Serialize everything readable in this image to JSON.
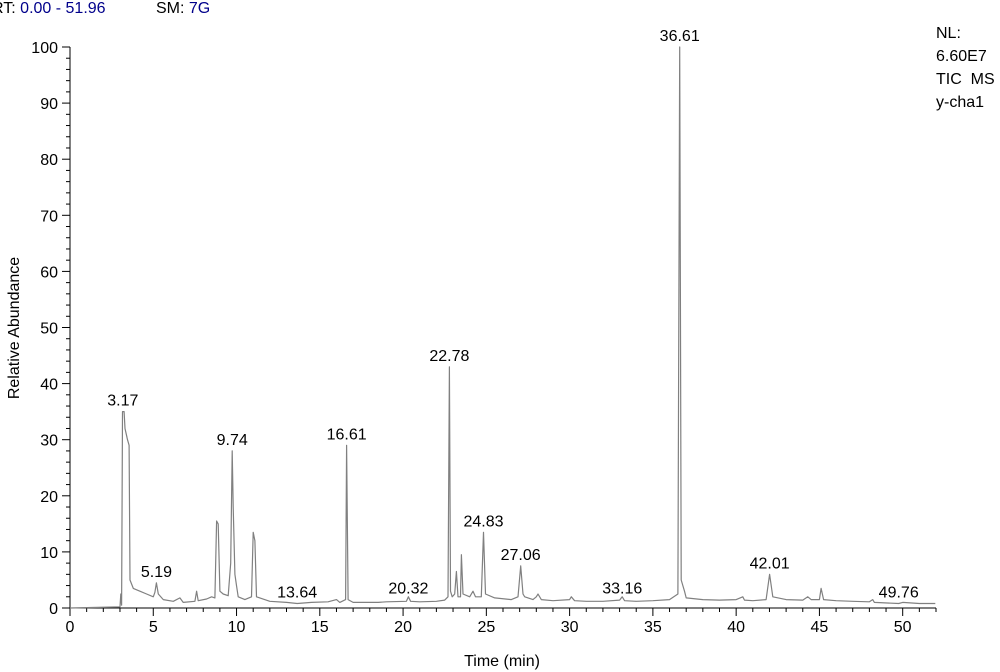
{
  "header": {
    "rt_label": "RT:",
    "rt_value": "0.00 - 51.96",
    "sm_label": "SM:",
    "sm_value": "7G"
  },
  "info": {
    "nl_label": "NL:",
    "nl_value": "6.60E7",
    "scan": "TIC  MS",
    "sample": "y-cha1"
  },
  "colors": {
    "trace": "#808080",
    "header_value": "#00008b"
  },
  "chart_data": {
    "type": "line",
    "xlabel": "Time (min)",
    "ylabel": "Relative Abundance",
    "xlim": [
      0,
      52
    ],
    "ylim": [
      0,
      100
    ],
    "x_ticks": [
      0,
      5,
      10,
      15,
      20,
      25,
      30,
      35,
      40,
      45,
      50
    ],
    "y_ticks": [
      0,
      10,
      20,
      30,
      40,
      50,
      60,
      70,
      80,
      90,
      100
    ],
    "grid": false,
    "peaks": [
      {
        "x": 3.17,
        "y": 35,
        "label": "3.17"
      },
      {
        "x": 5.19,
        "y": 4.5,
        "label": "5.19"
      },
      {
        "x": 9.74,
        "y": 28,
        "label": "9.74"
      },
      {
        "x": 13.64,
        "y": 0.8,
        "label": "13.64"
      },
      {
        "x": 16.61,
        "y": 29,
        "label": "16.61"
      },
      {
        "x": 20.32,
        "y": 1.5,
        "label": "20.32"
      },
      {
        "x": 22.78,
        "y": 43,
        "label": "22.78"
      },
      {
        "x": 24.83,
        "y": 13.5,
        "label": "24.83"
      },
      {
        "x": 27.06,
        "y": 7.5,
        "label": "27.06"
      },
      {
        "x": 33.16,
        "y": 1.5,
        "label": "33.16"
      },
      {
        "x": 36.61,
        "y": 100,
        "label": "36.61"
      },
      {
        "x": 42.01,
        "y": 6,
        "label": "42.01"
      },
      {
        "x": 49.76,
        "y": 0.8,
        "label": "49.76"
      }
    ],
    "trace": [
      [
        0,
        0
      ],
      [
        3.0,
        0.2
      ],
      [
        3.05,
        2.5
      ],
      [
        3.1,
        0.5
      ],
      [
        3.15,
        35
      ],
      [
        3.25,
        35
      ],
      [
        3.3,
        32
      ],
      [
        3.45,
        30
      ],
      [
        3.55,
        29
      ],
      [
        3.6,
        5
      ],
      [
        3.8,
        3.5
      ],
      [
        4.2,
        3
      ],
      [
        4.6,
        2.5
      ],
      [
        5.0,
        2
      ],
      [
        5.1,
        2.8
      ],
      [
        5.19,
        4.5
      ],
      [
        5.3,
        2.5
      ],
      [
        5.6,
        1.5
      ],
      [
        6.2,
        1.2
      ],
      [
        6.6,
        1.8
      ],
      [
        6.8,
        1
      ],
      [
        7.5,
        1.2
      ],
      [
        7.6,
        3
      ],
      [
        7.7,
        1.3
      ],
      [
        8.2,
        1.6
      ],
      [
        8.5,
        2
      ],
      [
        8.7,
        1.8
      ],
      [
        8.8,
        15.5
      ],
      [
        8.9,
        15
      ],
      [
        9.0,
        3
      ],
      [
        9.2,
        2.5
      ],
      [
        9.5,
        2.2
      ],
      [
        9.65,
        8
      ],
      [
        9.74,
        28
      ],
      [
        9.8,
        18
      ],
      [
        9.9,
        6
      ],
      [
        10.0,
        4
      ],
      [
        10.1,
        2
      ],
      [
        10.5,
        1.5
      ],
      [
        10.9,
        2
      ],
      [
        11.0,
        13.5
      ],
      [
        11.1,
        12
      ],
      [
        11.2,
        2
      ],
      [
        12.0,
        1.2
      ],
      [
        13.0,
        1
      ],
      [
        13.64,
        0.8
      ],
      [
        14.5,
        1
      ],
      [
        15.5,
        1.1
      ],
      [
        16.0,
        1.5
      ],
      [
        16.2,
        1
      ],
      [
        16.55,
        1.5
      ],
      [
        16.61,
        29
      ],
      [
        16.7,
        1.5
      ],
      [
        17.0,
        1
      ],
      [
        18.5,
        1
      ],
      [
        19.0,
        1.1
      ],
      [
        20.2,
        1.2
      ],
      [
        20.32,
        2
      ],
      [
        20.45,
        1.2
      ],
      [
        21.0,
        1.1
      ],
      [
        22.0,
        1.2
      ],
      [
        22.5,
        1.4
      ],
      [
        22.7,
        2
      ],
      [
        22.78,
        43
      ],
      [
        22.85,
        3
      ],
      [
        22.95,
        2
      ],
      [
        23.1,
        2.5
      ],
      [
        23.2,
        6.5
      ],
      [
        23.3,
        2
      ],
      [
        23.45,
        2
      ],
      [
        23.5,
        9.5
      ],
      [
        23.6,
        2.5
      ],
      [
        24.0,
        2
      ],
      [
        24.2,
        3
      ],
      [
        24.35,
        2
      ],
      [
        24.7,
        2
      ],
      [
        24.83,
        13.5
      ],
      [
        24.95,
        2.5
      ],
      [
        25.5,
        1.8
      ],
      [
        26.5,
        1.5
      ],
      [
        26.9,
        2
      ],
      [
        27.06,
        7.5
      ],
      [
        27.2,
        2.5
      ],
      [
        27.3,
        2
      ],
      [
        27.8,
        1.5
      ],
      [
        28.0,
        2
      ],
      [
        28.1,
        2.5
      ],
      [
        28.3,
        1.5
      ],
      [
        29.0,
        1.3
      ],
      [
        30.0,
        1.5
      ],
      [
        30.1,
        2
      ],
      [
        30.3,
        1.3
      ],
      [
        31.0,
        1.2
      ],
      [
        32.0,
        1.2
      ],
      [
        33.0,
        1.4
      ],
      [
        33.16,
        2
      ],
      [
        33.3,
        1.3
      ],
      [
        34.0,
        1.2
      ],
      [
        35.0,
        1.3
      ],
      [
        36.0,
        1.5
      ],
      [
        36.5,
        2.5
      ],
      [
        36.61,
        100
      ],
      [
        36.7,
        5
      ],
      [
        36.9,
        3
      ],
      [
        37.0,
        1.8
      ],
      [
        38.0,
        1.5
      ],
      [
        39.0,
        1.4
      ],
      [
        40.0,
        1.5
      ],
      [
        40.4,
        2
      ],
      [
        40.5,
        1.4
      ],
      [
        41.0,
        1.3
      ],
      [
        41.8,
        1.5
      ],
      [
        42.01,
        6
      ],
      [
        42.2,
        2
      ],
      [
        43.0,
        1.5
      ],
      [
        44.0,
        1.4
      ],
      [
        44.3,
        2
      ],
      [
        44.5,
        1.5
      ],
      [
        45.0,
        1.5
      ],
      [
        45.1,
        3.5
      ],
      [
        45.25,
        1.5
      ],
      [
        46.0,
        1.3
      ],
      [
        47.0,
        1.2
      ],
      [
        48.0,
        1.1
      ],
      [
        48.2,
        1.5
      ],
      [
        48.3,
        1
      ],
      [
        49.76,
        0.8
      ],
      [
        50.0,
        1
      ],
      [
        51.0,
        0.8
      ],
      [
        51.96,
        0.8
      ]
    ]
  }
}
